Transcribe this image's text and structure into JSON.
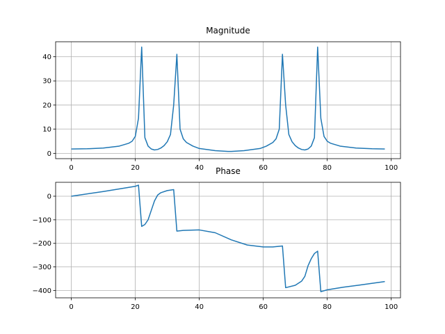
{
  "chart_data": [
    {
      "type": "line",
      "title": "Magnitude",
      "color": "#1f77b4",
      "grid": true,
      "x": [
        0,
        5,
        10,
        15,
        18,
        19,
        20,
        21,
        22,
        23,
        24,
        25,
        26,
        27,
        28,
        29,
        30,
        31,
        32,
        33,
        34,
        35,
        36,
        38,
        40,
        45,
        49,
        50,
        54,
        59,
        61,
        63,
        64,
        65,
        66,
        67,
        68,
        69,
        70,
        71,
        72,
        73,
        74,
        75,
        76,
        77,
        78,
        79,
        80,
        81,
        84,
        89,
        94,
        98
      ],
      "values": [
        1.8,
        1.9,
        2.2,
        3.0,
        4.2,
        5,
        7,
        14.5,
        44,
        6.5,
        3,
        1.8,
        1.4,
        1.6,
        2.2,
        3.2,
        4.8,
        7.8,
        20,
        41,
        10,
        6,
        4.5,
        3,
        2,
        1.1,
        0.8,
        0.8,
        1.1,
        2,
        3,
        4.5,
        6,
        10,
        41,
        20,
        7.8,
        4.8,
        3.2,
        2.2,
        1.6,
        1.4,
        1.8,
        3,
        6.5,
        44,
        14.5,
        7,
        5,
        4.2,
        3.0,
        2.2,
        1.9,
        1.8
      ],
      "xlim": [
        -4.9,
        102.9
      ],
      "xticks": [
        0,
        20,
        40,
        60,
        80,
        100
      ],
      "ylim": [
        -2.2,
        46.2
      ],
      "yticks": [
        0,
        10,
        20,
        30,
        40
      ]
    },
    {
      "type": "line",
      "title": "Phase",
      "color": "#1f77b4",
      "grid": true,
      "x": [
        0,
        10,
        20,
        21,
        22,
        23,
        24,
        25,
        26,
        27,
        28,
        30,
        32,
        33,
        35,
        40,
        45,
        50,
        55,
        60,
        63,
        66,
        67,
        70,
        72,
        73,
        74,
        75,
        76,
        77,
        78,
        80,
        85,
        90,
        98
      ],
      "values": [
        0,
        20,
        42,
        47,
        -128,
        -120,
        -100,
        -60,
        -20,
        5,
        15,
        24,
        28,
        -148,
        -145,
        -143,
        -155,
        -185,
        -207,
        -215,
        -215,
        -211,
        -388,
        -378,
        -360,
        -340,
        -295,
        -265,
        -243,
        -233,
        -405,
        -397,
        -386,
        -377,
        -362
      ],
      "xlim": [
        -4.9,
        102.9
      ],
      "xticks": [
        0,
        20,
        40,
        60,
        80,
        100
      ],
      "ylim": [
        -431,
        59
      ],
      "yticks": [
        {
          "value": -400,
          "label": "−400"
        },
        {
          "value": -300,
          "label": "−300"
        },
        {
          "value": -200,
          "label": "−200"
        },
        {
          "value": -100,
          "label": "−100"
        },
        0
      ]
    }
  ]
}
